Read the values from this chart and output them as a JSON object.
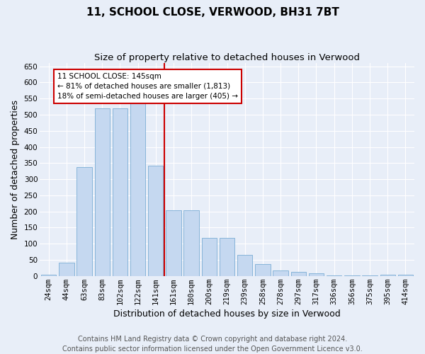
{
  "title": "11, SCHOOL CLOSE, VERWOOD, BH31 7BT",
  "subtitle": "Size of property relative to detached houses in Verwood",
  "xlabel": "Distribution of detached houses by size in Verwood",
  "ylabel": "Number of detached properties",
  "footer1": "Contains HM Land Registry data © Crown copyright and database right 2024.",
  "footer2": "Contains public sector information licensed under the Open Government Licence v3.0.",
  "annotation_line1": "11 SCHOOL CLOSE: 145sqm",
  "annotation_line2": "← 81% of detached houses are smaller (1,813)",
  "annotation_line3": "18% of semi-detached houses are larger (405) →",
  "bar_heights": [
    5,
    41,
    338,
    519,
    519,
    535,
    341,
    203,
    203,
    119,
    119,
    65,
    36,
    18,
    12,
    8,
    2,
    2,
    1,
    5,
    5
  ],
  "categories": [
    "24sqm",
    "44sqm",
    "63sqm",
    "83sqm",
    "102sqm",
    "122sqm",
    "141sqm",
    "161sqm",
    "180sqm",
    "200sqm",
    "219sqm",
    "239sqm",
    "258sqm",
    "278sqm",
    "297sqm",
    "317sqm",
    "336sqm",
    "356sqm",
    "375sqm",
    "395sqm",
    "414sqm"
  ],
  "bar_color": "#c5d8f0",
  "bar_edge_color": "#7aadd4",
  "vline_color": "#cc0000",
  "vline_pos": 6.5,
  "ylim": [
    0,
    660
  ],
  "yticks": [
    0,
    50,
    100,
    150,
    200,
    250,
    300,
    350,
    400,
    450,
    500,
    550,
    600,
    650
  ],
  "background_color": "#e8eef8",
  "grid_color": "#ffffff",
  "title_fontsize": 11,
  "subtitle_fontsize": 9.5,
  "ylabel_fontsize": 9,
  "xlabel_fontsize": 9,
  "tick_fontsize": 7.5,
  "footer_fontsize": 7,
  "ann_fontsize": 7.5
}
